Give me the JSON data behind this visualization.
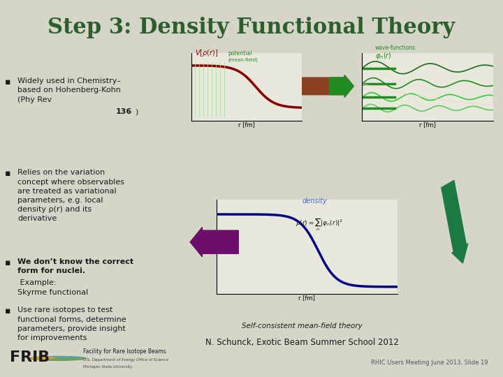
{
  "title": "Step 3: Density Functional Theory",
  "title_color": "#2d5f2d",
  "title_fontsize": 22,
  "bg_color": "#d6d6c8",
  "header_bg": "#c8c8b4",
  "content_bg": "#e8e8dc",
  "footer_bg": "#c8c8b4",
  "bullet_color": "#1a1a1a",
  "bullet_items": [
    "Widely used in Chemistry–\nbased on Hohenberg-Kohn\n(Phy Rev 136)",
    "Relies on the variation\nconcept where observables\nare treated as variational\nparameters, e.g. local\ndensity ρ(r) and its\nderivative",
    "We don’t know the correct\nform for nuclei. Example:\nSkyrme functional",
    "Use rare isotopes to test\nfunctional forms, determine\nparameters, provide insight\nfor improvements"
  ],
  "bullet3_bold_part": "We don’t know the correct\nform for nuclei.",
  "citation": "N. Schunck, Exotic Beam Summer School 2012",
  "self_consistent": "Self-consistent mean-field theory",
  "footer_right": "RHIC Users Meeting June 2013, Slide 19",
  "footer_left_text": "Facility for Rare Isotope Beams",
  "footer_left_sub1": "U.S. Department of Energy Office of Science",
  "footer_left_sub2": "Michigan State University",
  "frib_color": "#1a1a1a",
  "diagram_image_placeholder": true
}
